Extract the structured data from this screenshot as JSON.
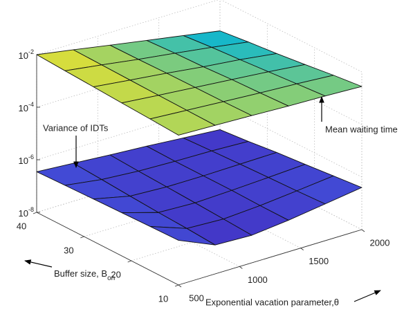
{
  "chart_data": {
    "type": "surface",
    "xlabel": "Exponential vacation parameter,θ",
    "ylabel": "Buffer size, B",
    "ylabel_subscript": "on",
    "x": [
      500,
      800,
      1100,
      1400,
      1700,
      2000
    ],
    "y": [
      10,
      16,
      22,
      28,
      34,
      40
    ],
    "xlim": [
      500,
      2000
    ],
    "ylim": [
      10,
      40
    ],
    "zlim": [
      1e-08,
      0.01
    ],
    "xticks": [
      500,
      1000,
      1500,
      2000
    ],
    "yticks": [
      10,
      20,
      30,
      40
    ],
    "zticks": [
      {
        "value": 1e-08,
        "label": "10-8"
      },
      {
        "value": 1e-06,
        "label": "10-6"
      },
      {
        "value": 0.0001,
        "label": "10-4"
      },
      {
        "value": 0.01,
        "label": "10-2"
      }
    ],
    "zscale": "log",
    "grid": true,
    "colormap": [
      "#3d26a6",
      "#4433c4",
      "#3f63e6",
      "#2c85ef",
      "#1c9be0",
      "#17b8c9",
      "#f5e326"
    ],
    "series": [
      {
        "name": "Mean waiting time",
        "values": [
          [
            0.005,
            0.0045,
            0.004,
            0.0035,
            0.0032,
            0.0028
          ],
          [
            0.0058,
            0.0047,
            0.0038,
            0.0031,
            0.0026,
            0.0021
          ],
          [
            0.0066,
            0.0049,
            0.0037,
            0.0028,
            0.0021,
            0.0015
          ],
          [
            0.0076,
            0.0052,
            0.0036,
            0.0024,
            0.0017,
            0.0011
          ],
          [
            0.0087,
            0.0055,
            0.0034,
            0.0022,
            0.0014,
            0.00085
          ],
          [
            0.01,
            0.0058,
            0.0033,
            0.0019,
            0.0011,
            0.00063
          ]
        ]
      },
      {
        "name": "Variance of IDTs",
        "values": [
          [
            5e-07,
            1.26e-07,
            1.12e-07,
            1.58e-07,
            2.5e-07,
            4e-07
          ],
          [
            4.7e-07,
            1.5e-07,
            1.3e-07,
            1.6e-07,
            2.2e-07,
            3.1e-07
          ],
          [
            4.4e-07,
            1.7e-07,
            1.5e-07,
            1.7e-07,
            2e-07,
            2.4e-07
          ],
          [
            4.1e-07,
            2e-07,
            1.7e-07,
            1.7e-07,
            1.8e-07,
            1.9e-07
          ],
          [
            3.8e-07,
            2.4e-07,
            1.9e-07,
            1.7e-07,
            1.6e-07,
            1.4e-07
          ],
          [
            3.5e-07,
            2.8e-07,
            2.2e-07,
            1.8e-07,
            1.4e-07,
            1.1e-07
          ]
        ]
      }
    ]
  }
}
